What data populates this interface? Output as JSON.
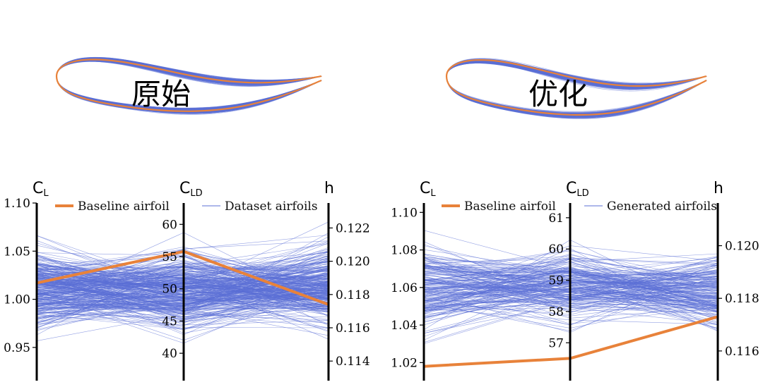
{
  "colors": {
    "dataset": "#5b6fd6",
    "baseline": "#e8823a",
    "axis": "#000000"
  },
  "chart_data": [
    {
      "type": "line",
      "label": "原始",
      "series_names": {
        "baseline": "",
        "dataset": ""
      },
      "legend": [
        {
          "label": "Baseline airfoil",
          "color": "#e8823a"
        },
        {
          "label": "Dataset airfoils",
          "color": "#5b6fd6"
        }
      ],
      "sample_count": 300
    },
    {
      "type": "line",
      "label": "优化",
      "series_names": {
        "baseline": "",
        "dataset": ""
      },
      "legend": [
        {
          "label": "Baseline airfoil",
          "color": "#e8823a"
        },
        {
          "label": "Generated airfoils",
          "color": "#5b6fd6"
        }
      ],
      "sample_count": 200
    },
    {
      "type": "parallel",
      "axes": [
        {
          "label_main": "C",
          "label_sub": "L",
          "range": [
            0.925,
            1.1
          ],
          "ticks": [
            "1.10",
            "1.05",
            "1.00",
            "0.95"
          ],
          "tick_values": [
            1.1,
            1.05,
            1.0,
            0.95
          ],
          "tick_side": "left"
        },
        {
          "label_main": "C",
          "label_sub": "LD",
          "range": [
            37.5,
            62.0
          ],
          "ticks": [
            "60",
            "55",
            "50",
            "45",
            "40"
          ],
          "tick_values": [
            60,
            55,
            50,
            45,
            40
          ],
          "tick_side": "left"
        },
        {
          "label_main": "h",
          "label_sub": "",
          "range": [
            0.1135,
            0.1235
          ],
          "ticks": [
            "0.122",
            "0.120",
            "0.118",
            "0.116",
            "0.114"
          ],
          "tick_values": [
            0.122,
            0.12,
            0.118,
            0.116,
            0.114
          ],
          "tick_side": "right"
        }
      ],
      "legend": [
        {
          "label": "Baseline airfoil",
          "color": "#e8823a"
        },
        {
          "label": "Dataset airfoils",
          "color": "#5b6fd6"
        }
      ],
      "baseline": [
        1.017,
        55.8,
        0.1174
      ],
      "sample_count": 320
    },
    {
      "type": "parallel",
      "axes": [
        {
          "label_main": "C",
          "label_sub": "L",
          "range": [
            1.013,
            1.105
          ],
          "ticks": [
            "1.10",
            "1.08",
            "1.06",
            "1.04",
            "1.02"
          ],
          "tick_values": [
            1.1,
            1.08,
            1.06,
            1.04,
            1.02
          ],
          "tick_side": "left"
        },
        {
          "label_main": "C",
          "label_sub": "LD",
          "range": [
            56.6,
            61.2
          ],
          "ticks": [
            "61",
            "60",
            "59",
            "58",
            "57"
          ],
          "tick_values": [
            61,
            60,
            59,
            58,
            57
          ],
          "tick_side": "left"
        },
        {
          "label_main": "h",
          "label_sub": "",
          "range": [
            0.1153,
            0.1213
          ],
          "ticks": [
            "0.120",
            "0.118",
            "0.116"
          ],
          "tick_values": [
            0.12,
            0.118,
            0.116
          ],
          "tick_side": "right"
        }
      ],
      "legend": [
        {
          "label": "Baseline airfoil",
          "color": "#e8823a"
        },
        {
          "label": "Generated airfoils",
          "color": "#5b6fd6"
        }
      ],
      "baseline": [
        1.018,
        56.5,
        0.1173
      ],
      "sample_count": 200
    }
  ]
}
